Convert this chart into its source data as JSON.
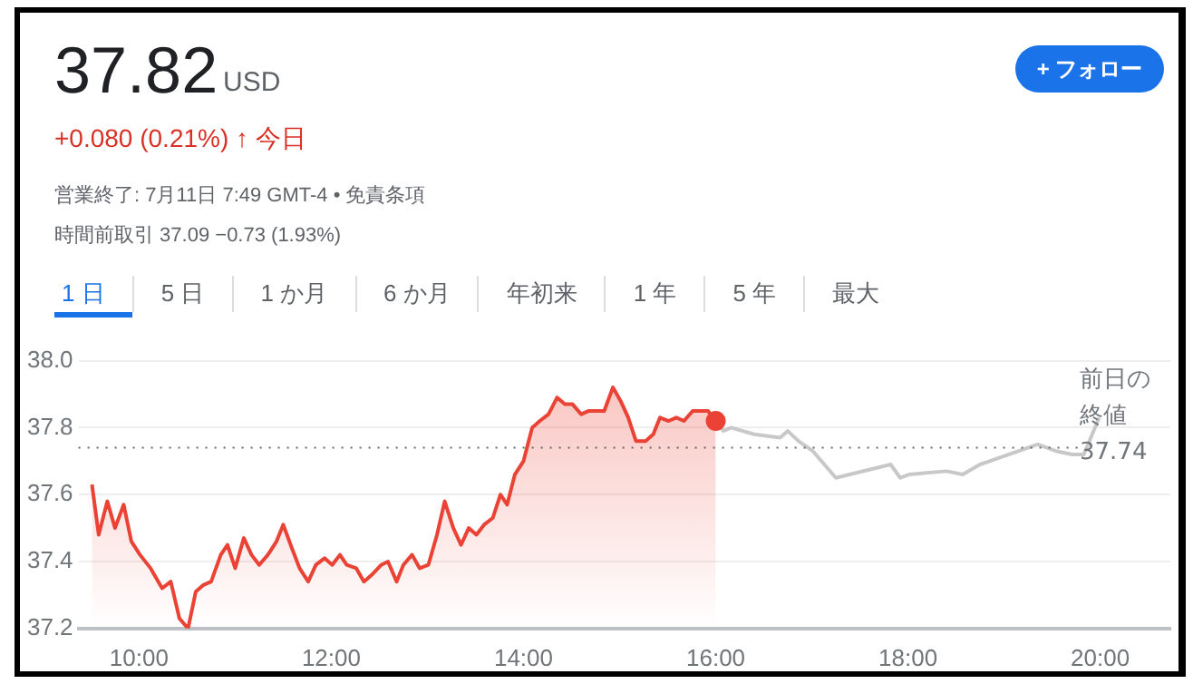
{
  "chart_data": {
    "type": "area",
    "title": "37.82",
    "subtitle": "USD",
    "annotations": [
      "+0.080 (0.21%) ↑ 今日",
      "営業終了: 7月11日 7:49 GMT-4 • 免責条項",
      "時間前取引 37.09 −0.73 (1.93%)",
      "+ フォロー",
      "1 日",
      "5 日",
      "1 か月",
      "6 か月",
      "年初来",
      "1 年",
      "5 年",
      "最大"
    ],
    "series": [
      {
        "color": "#ea4335",
        "x": [
          9.51,
          9.58,
          9.67,
          9.75,
          9.84,
          9.92,
          10.01,
          10.12,
          10.24,
          10.33,
          10.42,
          10.51,
          10.59,
          10.67,
          10.75,
          10.85,
          10.92,
          11.0,
          11.09,
          11.17,
          11.25,
          11.34,
          11.43,
          11.5,
          11.59,
          11.67,
          11.76,
          11.84,
          11.93,
          12.01,
          12.09,
          12.16,
          12.26,
          12.34,
          12.42,
          12.52,
          12.59,
          12.68,
          12.75,
          12.84,
          12.92,
          13.01,
          13.1,
          13.18,
          13.27,
          13.35,
          13.43,
          13.51,
          13.59,
          13.68,
          13.76,
          13.83,
          13.91,
          14.0,
          14.09,
          14.17,
          14.26,
          14.35,
          14.43,
          14.51,
          14.6,
          14.68,
          14.84,
          14.93,
          15.01,
          15.09,
          15.17,
          15.27,
          15.35,
          15.42,
          15.51,
          15.59,
          15.67,
          15.76,
          15.92,
          16.0
        ],
        "values": [
          37.63,
          37.48,
          37.58,
          37.5,
          37.57,
          37.46,
          37.42,
          37.38,
          37.32,
          37.34,
          37.23,
          37.2,
          37.31,
          37.33,
          37.34,
          37.42,
          37.45,
          37.38,
          37.47,
          37.42,
          37.39,
          37.42,
          37.46,
          37.51,
          37.44,
          37.38,
          37.34,
          37.39,
          37.41,
          37.39,
          37.42,
          37.39,
          37.38,
          37.34,
          37.36,
          37.39,
          37.4,
          37.34,
          37.39,
          37.42,
          37.38,
          37.39,
          37.48,
          37.58,
          37.5,
          37.45,
          37.5,
          37.48,
          37.51,
          37.53,
          37.6,
          37.57,
          37.66,
          37.7,
          37.8,
          37.82,
          37.84,
          37.89,
          37.87,
          37.87,
          37.84,
          37.85,
          37.85,
          37.92,
          37.88,
          37.83,
          37.76,
          37.76,
          37.78,
          37.83,
          37.82,
          37.83,
          37.82,
          37.85,
          37.85,
          37.82
        ]
      },
      {
        "type": "scatter",
        "color": "#ea4335",
        "x": [
          16.0
        ],
        "values": [
          37.82
        ],
        "marker": "circle"
      },
      {
        "type": "line",
        "color": "#c8c8c8",
        "x": [
          16.0,
          16.08,
          16.16,
          16.4,
          16.67,
          16.75,
          16.86,
          17.01,
          17.25,
          17.82,
          17.92,
          18.01,
          18.4,
          18.57,
          18.75,
          19.35,
          19.54,
          19.71,
          19.83,
          19.99
        ],
        "values": [
          37.82,
          37.79,
          37.8,
          37.78,
          37.77,
          37.79,
          37.76,
          37.73,
          37.65,
          37.69,
          37.65,
          37.66,
          37.67,
          37.66,
          37.69,
          37.75,
          37.73,
          37.72,
          37.72,
          37.83
        ]
      }
    ],
    "xlim": [
      9.37,
      20.73
    ],
    "xticks": [
      {
        "value": 10,
        "label": "10:00"
      },
      {
        "value": 12,
        "label": "12:00"
      },
      {
        "value": 14,
        "label": "14:00"
      },
      {
        "value": 16,
        "label": "16:00"
      },
      {
        "value": 18,
        "label": "18:00"
      },
      {
        "value": 20,
        "label": "20:00"
      }
    ],
    "ylim": [
      37.2,
      38.0
    ],
    "yticks": [
      37.2,
      37.4,
      37.6,
      37.8,
      {
        "value": 38.0,
        "label": "38.0"
      }
    ],
    "grid": "y",
    "legend": false,
    "marker": "none",
    "line_style": "solid",
    "ref_lines": [
      {
        "axis": "y",
        "value": 37.74,
        "label": "前日の終値 37.74",
        "line_style": "dotted",
        "color": "#666666"
      }
    ]
  }
}
